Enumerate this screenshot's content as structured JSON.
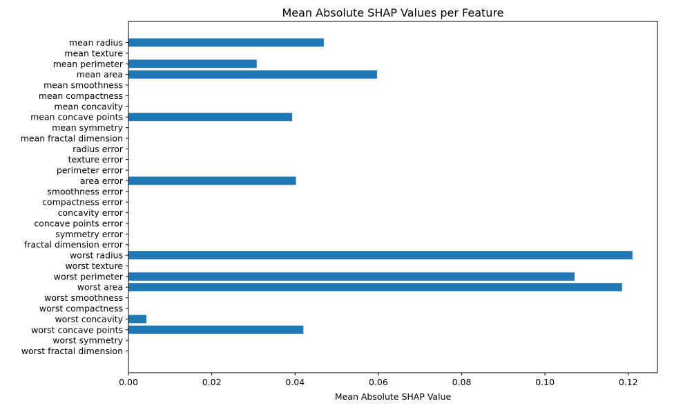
{
  "chart_data": {
    "type": "bar",
    "orientation": "horizontal",
    "title": "Mean Absolute SHAP Values per Feature",
    "xlabel": "Mean Absolute SHAP Value",
    "ylabel": "",
    "xlim": [
      0,
      0.127
    ],
    "xticks": [
      0,
      0.02,
      0.04,
      0.06,
      0.08,
      0.1,
      0.12
    ],
    "xtick_labels": [
      "0.00",
      "0.02",
      "0.04",
      "0.06",
      "0.08",
      "0.10",
      "0.12"
    ],
    "grid": false,
    "bar_color": "#1f77b4",
    "categories": [
      "mean radius",
      "mean texture",
      "mean perimeter",
      "mean area",
      "mean smoothness",
      "mean compactness",
      "mean concavity",
      "mean concave points",
      "mean symmetry",
      "mean fractal dimension",
      "radius error",
      "texture error",
      "perimeter error",
      "area error",
      "smoothness error",
      "compactness error",
      "concavity error",
      "concave points error",
      "symmetry error",
      "fractal dimension error",
      "worst radius",
      "worst texture",
      "worst perimeter",
      "worst area",
      "worst smoothness",
      "worst compactness",
      "worst concavity",
      "worst concave points",
      "worst symmetry",
      "worst fractal dimension"
    ],
    "values": [
      0.0469,
      0,
      0.0308,
      0.0597,
      0,
      0,
      0,
      0.0393,
      0,
      0,
      0,
      0,
      0,
      0.0402,
      0,
      0,
      0,
      0,
      0,
      0,
      0.121,
      0,
      0.1071,
      0.1185,
      0,
      0,
      0.0043,
      0.042,
      0,
      0
    ]
  }
}
